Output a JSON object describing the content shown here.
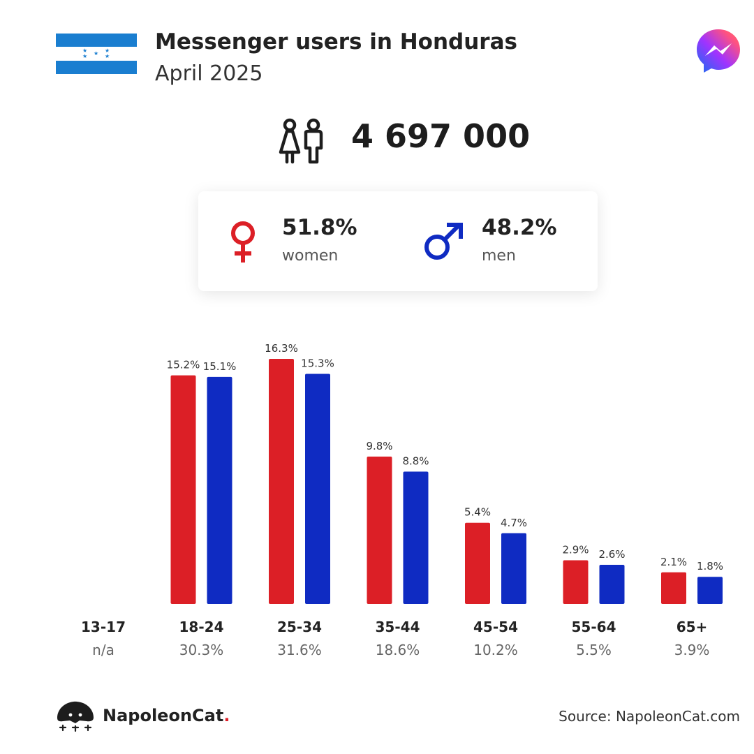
{
  "header": {
    "title": "Messenger users in Honduras",
    "subtitle": "April 2025",
    "flag_icon": "honduras-flag",
    "app_icon": "messenger-logo-icon"
  },
  "total": {
    "icon": "people-icon",
    "value": "4 697 000"
  },
  "gender": {
    "women": {
      "icon": "female-symbol-icon",
      "percent": "51.8%",
      "label": "women",
      "color": "#dc1f26"
    },
    "men": {
      "icon": "male-symbol-icon",
      "percent": "48.2%",
      "label": "men",
      "color": "#0f2bc2"
    }
  },
  "chart_data": {
    "type": "bar",
    "categories": [
      "13-17",
      "18-24",
      "25-34",
      "35-44",
      "45-54",
      "55-64",
      "65+"
    ],
    "group_totals": [
      "n/a",
      "30.3%",
      "31.6%",
      "18.6%",
      "10.2%",
      "5.5%",
      "3.9%"
    ],
    "series": [
      {
        "name": "women",
        "color": "#dc1f26",
        "values": [
          null,
          15.2,
          16.3,
          9.8,
          5.4,
          2.9,
          2.1
        ],
        "labels": [
          "",
          "15.2%",
          "16.3%",
          "9.8%",
          "5.4%",
          "2.9%",
          "2.1%"
        ]
      },
      {
        "name": "men",
        "color": "#0f2bc2",
        "values": [
          null,
          15.1,
          15.3,
          8.8,
          4.7,
          2.6,
          1.8
        ],
        "labels": [
          "",
          "15.1%",
          "15.3%",
          "8.8%",
          "4.7%",
          "2.6%",
          "1.8%"
        ]
      }
    ],
    "ylim": [
      0,
      16.3
    ],
    "grid": false,
    "legend": "none"
  },
  "footer": {
    "brand_icon": "napoleoncat-logo-icon",
    "brand_name": "NapoleonCat",
    "brand_dot": ".",
    "source": "Source: NapoleonCat.com"
  }
}
